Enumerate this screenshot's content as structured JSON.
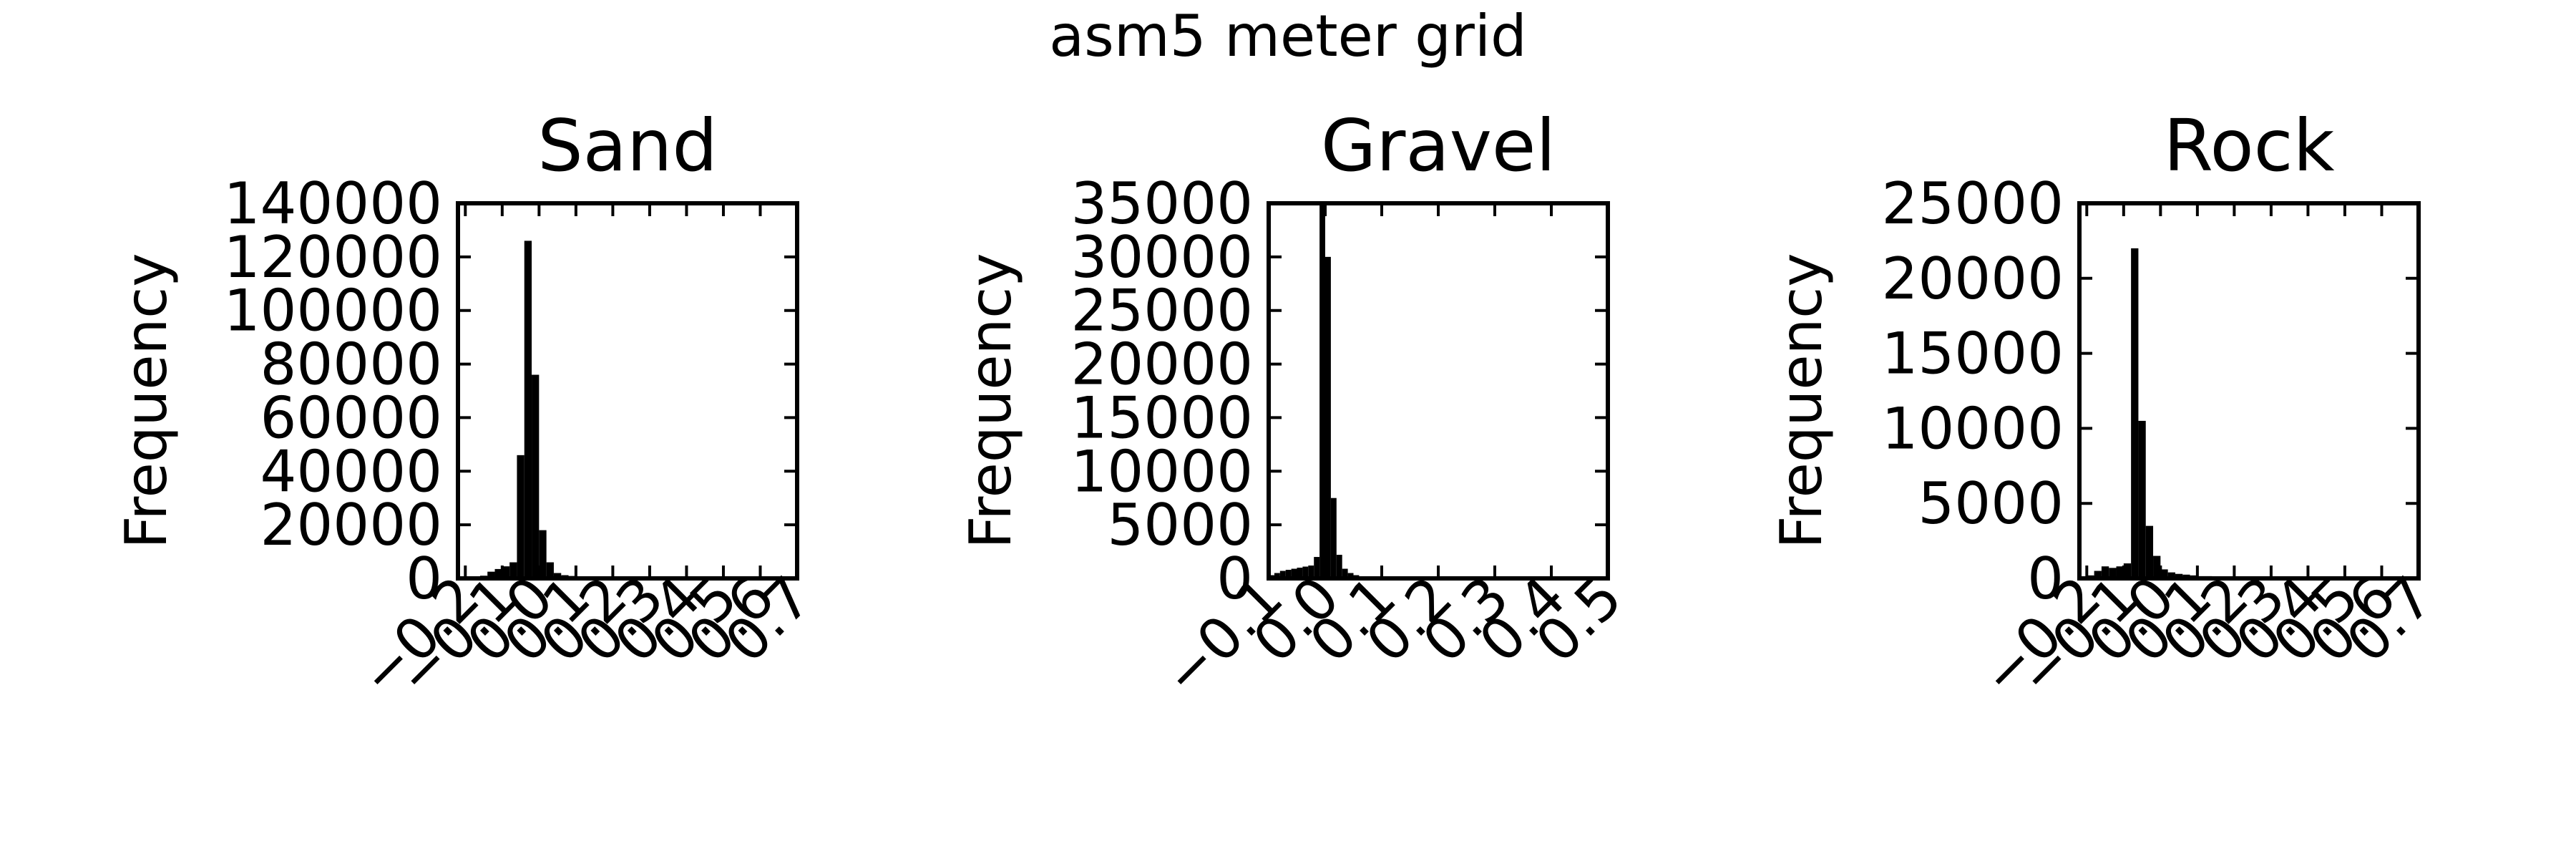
{
  "figure": {
    "suptitle": "asm5 meter grid",
    "bar_color": "#000000",
    "background": "#ffffff"
  },
  "chart_data": [
    {
      "type": "bar",
      "title": "Sand",
      "xlabel": "",
      "ylabel": "Frequency",
      "xlim": [
        -0.22,
        0.7
      ],
      "ylim": [
        0,
        140000
      ],
      "xticks": [
        -0.2,
        -0.1,
        0.0,
        0.1,
        0.2,
        0.3,
        0.4,
        0.5,
        0.6,
        0.7
      ],
      "xtick_labels": [
        "−0.2",
        "−0.1",
        "0.0",
        "0.1",
        "0.2",
        "0.3",
        "0.4",
        "0.5",
        "0.6",
        "0.7"
      ],
      "yticks": [
        0,
        20000,
        40000,
        60000,
        80000,
        100000,
        120000,
        140000
      ],
      "ytick_labels": [
        "0",
        "20000",
        "40000",
        "60000",
        "80000",
        "100000",
        "120000",
        "140000"
      ],
      "bin_edges": [
        -0.16,
        -0.14,
        -0.12,
        -0.1,
        -0.08,
        -0.06,
        -0.04,
        -0.02,
        0.0,
        0.02,
        0.04,
        0.06,
        0.08,
        0.1,
        0.12,
        0.14,
        0.16,
        0.2,
        0.3,
        0.4,
        0.5
      ],
      "counts": [
        1000,
        2500,
        3500,
        4500,
        6000,
        46000,
        126000,
        76000,
        18000,
        6000,
        2000,
        1200,
        900,
        800,
        700,
        600,
        500,
        400,
        300,
        200
      ]
    },
    {
      "type": "bar",
      "title": "Gravel",
      "xlabel": "",
      "ylabel": "Frequency",
      "xlim": [
        -0.1,
        0.5
      ],
      "ylim": [
        0,
        35000
      ],
      "xticks": [
        -0.1,
        0.0,
        0.1,
        0.2,
        0.3,
        0.4,
        0.5
      ],
      "xtick_labels": [
        "−0.1",
        "0.0",
        "0.1",
        "0.2",
        "0.3",
        "0.4",
        "0.5"
      ],
      "yticks": [
        0,
        5000,
        10000,
        15000,
        20000,
        25000,
        30000,
        35000
      ],
      "ytick_labels": [
        "0",
        "5000",
        "10000",
        "15000",
        "20000",
        "25000",
        "30000",
        "35000"
      ],
      "bin_edges": [
        -0.1,
        -0.09,
        -0.08,
        -0.07,
        -0.06,
        -0.05,
        -0.04,
        -0.03,
        -0.02,
        -0.01,
        0.0,
        0.01,
        0.02,
        0.03,
        0.04,
        0.05,
        0.06,
        0.08,
        0.1,
        0.15,
        0.2,
        0.3
      ],
      "counts": [
        300,
        500,
        700,
        800,
        900,
        1000,
        1100,
        1200,
        2000,
        35000,
        30000,
        7500,
        2200,
        900,
        500,
        300,
        200,
        150,
        120,
        80,
        40
      ]
    },
    {
      "type": "bar",
      "title": "Rock",
      "xlabel": "",
      "ylabel": "Frequency",
      "xlim": [
        -0.22,
        0.7
      ],
      "ylim": [
        0,
        25000
      ],
      "xticks": [
        -0.2,
        -0.1,
        0.0,
        0.1,
        0.2,
        0.3,
        0.4,
        0.5,
        0.6,
        0.7
      ],
      "xtick_labels": [
        "−0.2",
        "−0.1",
        "0.0",
        "0.1",
        "0.2",
        "0.3",
        "0.4",
        "0.5",
        "0.6",
        "0.7"
      ],
      "yticks": [
        0,
        5000,
        10000,
        15000,
        20000,
        25000
      ],
      "ytick_labels": [
        "0",
        "5000",
        "10000",
        "15000",
        "20000",
        "25000"
      ],
      "bin_edges": [
        -0.2,
        -0.18,
        -0.16,
        -0.14,
        -0.12,
        -0.1,
        -0.08,
        -0.06,
        -0.04,
        -0.02,
        0.0,
        0.02,
        0.04,
        0.06,
        0.08,
        0.1,
        0.14,
        0.2,
        0.3,
        0.4,
        0.5
      ],
      "counts": [
        200,
        500,
        800,
        700,
        800,
        1000,
        22000,
        10500,
        3500,
        1500,
        600,
        400,
        300,
        250,
        200,
        150,
        120,
        100,
        80,
        60
      ]
    }
  ]
}
